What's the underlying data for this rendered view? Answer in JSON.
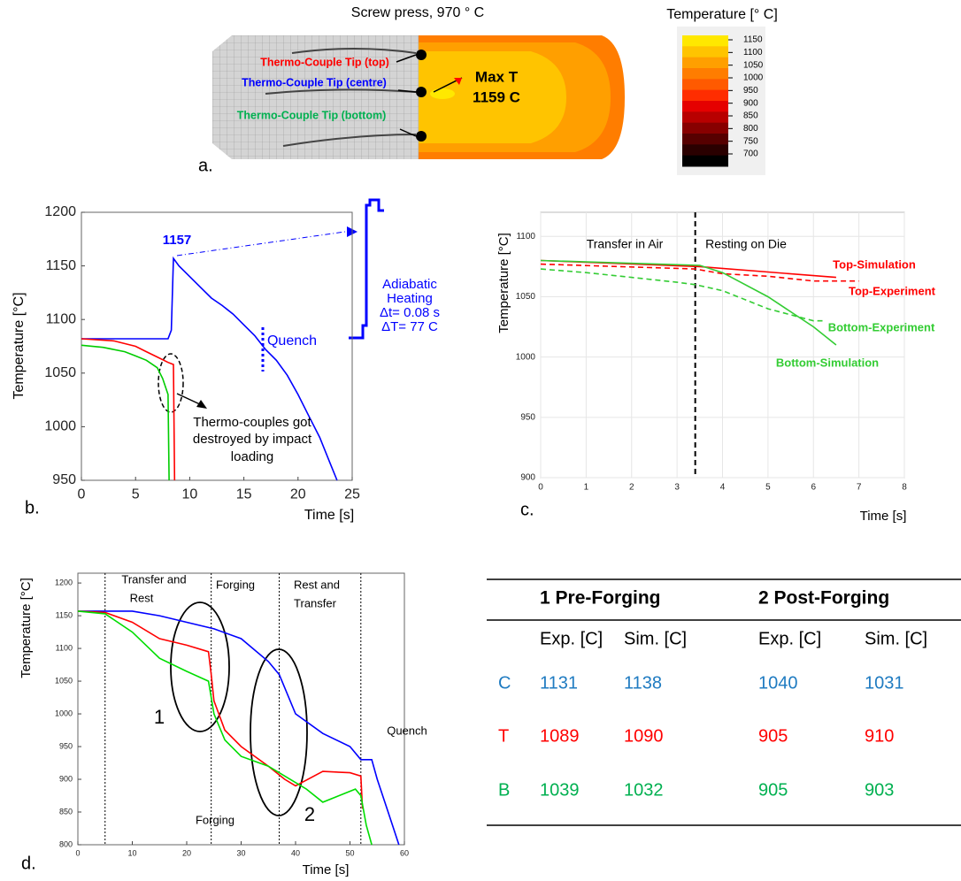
{
  "panel_a": {
    "title": "Screw press, 970 ° C",
    "panel_label": "a.",
    "labels": [
      "Thermo-Couple Tip (top)",
      "Thermo-Couple Tip (centre)",
      "Thermo-Couple Tip (bottom)"
    ],
    "label_colors": [
      "#ff0000",
      "#0000ff",
      "#00b050"
    ],
    "max_label": "Max T",
    "max_value": "1159 C",
    "colorbar": {
      "title": "Temperature [° C]",
      "ticks": [
        1150,
        1100,
        1050,
        1000,
        950,
        900,
        850,
        800,
        750,
        700
      ],
      "colors": [
        "#ffe800",
        "#ffc400",
        "#ff9f00",
        "#ff7d00",
        "#ff5a00",
        "#ff2d00",
        "#e50000",
        "#b80000",
        "#870000",
        "#560000",
        "#2a0000",
        "#000000"
      ]
    }
  },
  "chart_data": [
    {
      "type": "line",
      "panel_label": "b.",
      "x_label": "Time [s]",
      "y_label": "Temperature [°C]",
      "xlim": [
        0,
        25
      ],
      "ylim": [
        950,
        1200
      ],
      "xticks": [
        0,
        5,
        10,
        15,
        20,
        25
      ],
      "yticks": [
        950,
        1000,
        1050,
        1100,
        1150,
        1200
      ],
      "peak": 1157,
      "annotations": [
        "Quench",
        "Adiabatic",
        "Heating",
        "Δt= 0.08 s",
        "ΔT= 77 C",
        "Thermo-couples got",
        "destroyed by impact",
        "loading"
      ],
      "series": [
        {
          "color": "#0000ff",
          "x": [
            0,
            8,
            8.3,
            8.5,
            9,
            10,
            11,
            12,
            13,
            14,
            15,
            16,
            17,
            18,
            19,
            20,
            21,
            22,
            23,
            23.6
          ],
          "values": [
            1082,
            1082,
            1090,
            1157,
            1150,
            1140,
            1130,
            1120,
            1113,
            1105,
            1095,
            1085,
            1072,
            1062,
            1048,
            1030,
            1010,
            990,
            965,
            950
          ]
        },
        {
          "color": "#ff0000",
          "x": [
            0,
            3,
            5,
            6,
            7,
            8,
            8.5,
            8.6
          ],
          "values": [
            1082,
            1080,
            1075,
            1070,
            1065,
            1060,
            1058,
            950
          ]
        },
        {
          "color": "#00cc00",
          "x": [
            0,
            2,
            4,
            5,
            6,
            7,
            7.5,
            8,
            8.1
          ],
          "values": [
            1076,
            1074,
            1070,
            1066,
            1062,
            1055,
            1045,
            1030,
            950
          ]
        }
      ]
    },
    {
      "type": "line",
      "panel_label": "c.",
      "x_label": "Time [s]",
      "y_label": "Temperature [°C]",
      "xlim": [
        0,
        8
      ],
      "ylim": [
        900,
        1120
      ],
      "xticks": [
        0,
        1,
        2,
        3,
        4,
        5,
        6,
        7,
        8
      ],
      "yticks": [
        900,
        950,
        1000,
        1050,
        1100
      ],
      "grid": true,
      "vlines": [
        3.4
      ],
      "annotations": [
        "Transfer in Air",
        "Resting on Die"
      ],
      "series": [
        {
          "name": "Top-Simulation",
          "color": "#ff0000",
          "dashed": false,
          "x": [
            0,
            3.5,
            6.5
          ],
          "values": [
            1080,
            1075,
            1066
          ]
        },
        {
          "name": "Top-Experiment",
          "color": "#ff0000",
          "dashed": true,
          "x": [
            0,
            3.4,
            4,
            5,
            6,
            7
          ],
          "values": [
            1077,
            1073,
            1069,
            1067,
            1063,
            1063
          ]
        },
        {
          "name": "Bottom-Experiment",
          "color": "#33cc33",
          "dashed": true,
          "x": [
            0,
            1,
            2,
            3,
            3.4,
            4,
            5,
            6,
            6.2
          ],
          "values": [
            1073,
            1070,
            1066,
            1062,
            1060,
            1055,
            1040,
            1030,
            1030
          ]
        },
        {
          "name": "Bottom-Simulation",
          "color": "#33cc33",
          "dashed": false,
          "x": [
            0,
            3.5,
            4,
            5,
            6,
            6.5
          ],
          "values": [
            1080,
            1076,
            1070,
            1050,
            1025,
            1010
          ]
        }
      ]
    },
    {
      "type": "line",
      "panel_label": "d.",
      "x_label": "Time [s]",
      "y_label": "Temperature [°C]",
      "xlim": [
        0,
        60
      ],
      "ylim": [
        800,
        1215
      ],
      "xticks": [
        0,
        10,
        20,
        30,
        40,
        50,
        60
      ],
      "yticks": [
        800,
        850,
        900,
        950,
        1000,
        1050,
        1100,
        1150,
        1200
      ],
      "vlines": [
        5,
        24.5,
        37,
        52
      ],
      "annotations": [
        "Transfer and",
        "Rest",
        "Forging",
        "Rest and",
        "Transfer",
        "Quench",
        "Forging",
        "1",
        "2"
      ],
      "series": [
        {
          "color": "#0000ff",
          "x": [
            0,
            5,
            10,
            15,
            20,
            25,
            30,
            35,
            37,
            40,
            45,
            50,
            52,
            54,
            55,
            57,
            59
          ],
          "values": [
            1157,
            1157,
            1157,
            1150,
            1140,
            1130,
            1115,
            1080,
            1060,
            1000,
            970,
            950,
            930,
            930,
            900,
            850,
            800
          ]
        },
        {
          "color": "#ff0000",
          "x": [
            0,
            5,
            10,
            15,
            20,
            24,
            24.5,
            25,
            27,
            30,
            35,
            38,
            40,
            45,
            50,
            52,
            52.3
          ],
          "values": [
            1157,
            1155,
            1140,
            1115,
            1105,
            1095,
            1060,
            1020,
            975,
            950,
            920,
            900,
            890,
            912,
            910,
            905,
            855
          ]
        },
        {
          "color": "#00dd00",
          "x": [
            0,
            5,
            10,
            15,
            20,
            24,
            25,
            27,
            30,
            35,
            38,
            42,
            45,
            48,
            51,
            52,
            53,
            54
          ],
          "values": [
            1157,
            1153,
            1125,
            1085,
            1065,
            1050,
            1000,
            960,
            935,
            920,
            905,
            885,
            865,
            875,
            885,
            875,
            830,
            800
          ]
        }
      ]
    }
  ],
  "table": {
    "groups": [
      "1 Pre-Forging",
      "2 Post-Forging"
    ],
    "columns": [
      "Exp. [C]",
      "Sim. [C]",
      "Exp. [C]",
      "Sim. [C]"
    ],
    "rows": [
      {
        "label": "C",
        "color": "#1f7bc1",
        "cells": [
          1131,
          1138,
          1040,
          1031
        ]
      },
      {
        "label": "T",
        "color": "#ff0000",
        "cells": [
          1089,
          1090,
          905,
          910
        ]
      },
      {
        "label": "B",
        "color": "#00b050",
        "cells": [
          1039,
          1032,
          905,
          903
        ]
      }
    ]
  }
}
